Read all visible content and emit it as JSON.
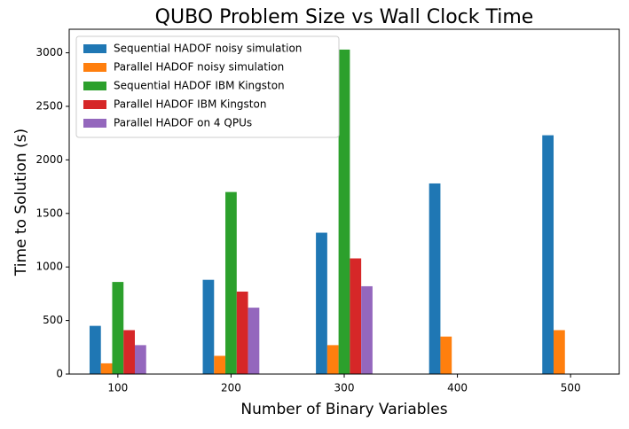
{
  "chart_data": {
    "type": "bar",
    "title": "QUBO Problem Size vs Wall Clock Time",
    "x_label": "Number of Binary Variables",
    "y_label": "Time to Solution (s)",
    "categories": [
      "100",
      "200",
      "300",
      "400",
      "500"
    ],
    "series": [
      {
        "name": "Sequential HADOF noisy simulation",
        "color": "#1f77b4",
        "values": [
          450,
          880,
          1320,
          1780,
          2230
        ]
      },
      {
        "name": "Parallel HADOF noisy simulation",
        "color": "#ff7f0e",
        "values": [
          100,
          170,
          270,
          350,
          410
        ]
      },
      {
        "name": "Sequential HADOF IBM Kingston",
        "color": "#2ca02c",
        "values": [
          860,
          1700,
          3030,
          null,
          null
        ]
      },
      {
        "name": "Parallel HADOF IBM Kingston",
        "color": "#d62728",
        "values": [
          410,
          770,
          1080,
          null,
          null
        ]
      },
      {
        "name": "Parallel HADOF on 4 QPUs",
        "color": "#9467bd",
        "values": [
          270,
          620,
          820,
          null,
          null
        ]
      }
    ],
    "ylim": [
      0,
      3220
    ],
    "yticks": [
      0,
      500,
      1000,
      1500,
      2000,
      2500,
      3000
    ],
    "legend": "upper left"
  }
}
